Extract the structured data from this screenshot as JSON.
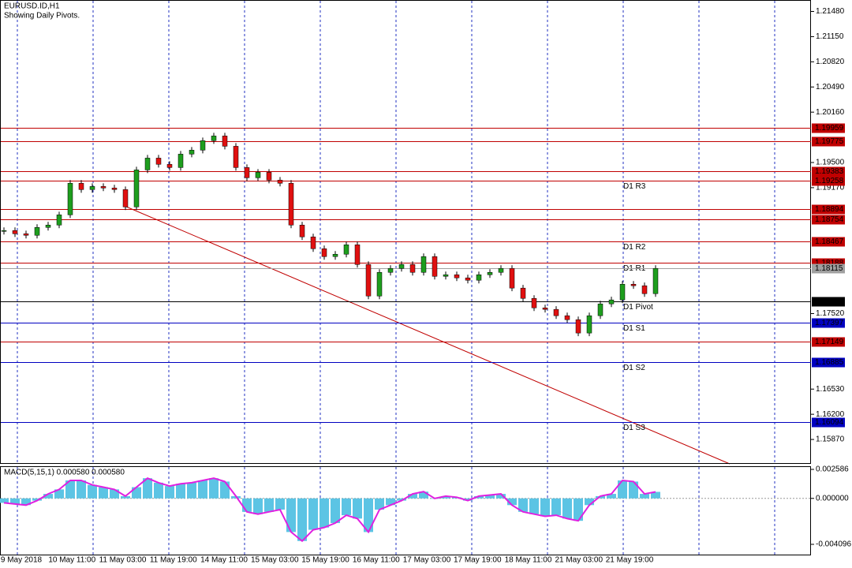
{
  "chart_data": {
    "type": "candlestick",
    "title": "EURUSD.ID,H1",
    "subtitle": "Showing Daily Pivots.",
    "up_color": "#1e9e1e",
    "down_color": "#e01010",
    "close": [
      1.18608,
      1.18566,
      1.18546,
      1.18649,
      1.1868,
      1.18814,
      1.19228,
      1.19145,
      1.19186,
      1.19166,
      1.19145,
      1.18918,
      1.19403,
      1.19558,
      1.19476,
      1.19434,
      1.1961,
      1.19662,
      1.19786,
      1.19848,
      1.19713,
      1.19434,
      1.193,
      1.19372,
      1.19269,
      1.19228,
      1.1868,
      1.18525,
      1.1837,
      1.18267,
      1.18298,
      1.18422,
      1.18163,
      1.1775,
      1.1806,
      1.18112,
      1.18163,
      1.1806,
      1.18267,
      1.18008,
      1.18029,
      1.17988,
      1.17957,
      1.18029,
      1.1806,
      1.18112,
      1.17854,
      1.17719,
      1.17595,
      1.17575,
      1.17492,
      1.1744,
      1.17265,
      1.17492,
      1.17647,
      1.17699,
      1.17905,
      1.17885,
      1.17781,
      1.18112
    ],
    "ylim": [
      1.1555,
      1.2163
    ],
    "yticks": [
      {
        "value": 1.2148,
        "label": "1.21480"
      },
      {
        "value": 1.2115,
        "label": "1.21150"
      },
      {
        "value": 1.2082,
        "label": "1.20820"
      },
      {
        "value": 1.2049,
        "label": "1.20490"
      },
      {
        "value": 1.2016,
        "label": "1.20160"
      },
      {
        "value": 1.195,
        "label": "1.19500"
      },
      {
        "value": 1.1917,
        "label": "1.19170"
      },
      {
        "value": 1.1752,
        "label": "1.17520"
      },
      {
        "value": 1.1653,
        "label": "1.16530"
      },
      {
        "value": 1.162,
        "label": "1.16200"
      },
      {
        "value": 1.1587,
        "label": "1.15870"
      }
    ],
    "levels": [
      {
        "value": 1.19959,
        "color": "#c00000"
      },
      {
        "value": 1.19775,
        "color": "#c00000"
      },
      {
        "value": 1.19383,
        "color": "#c00000"
      },
      {
        "value": 1.19258,
        "color": "#c00000",
        "name": "D1 R3"
      },
      {
        "value": 1.18894,
        "color": "#c00000"
      },
      {
        "value": 1.18754,
        "color": "#c00000"
      },
      {
        "value": 1.18467,
        "color": "#c00000",
        "name": "D1 R2"
      },
      {
        "value": 1.18188,
        "color": "#c00000",
        "name": "D1 R1"
      },
      {
        "value": 1.18115,
        "color": "#a0a0a0"
      },
      {
        "value": 1.17676,
        "color": "#000000",
        "name": "D1 Pivot"
      },
      {
        "value": 1.17397,
        "color": "#0000c0",
        "name": "D1 S1"
      },
      {
        "value": 1.17149,
        "color": "#c00000"
      },
      {
        "value": 1.16885,
        "color": "#0000c0",
        "name": "D1 S2"
      },
      {
        "value": 1.16094,
        "color": "#0000c0",
        "name": "D1 S3"
      }
    ],
    "xlabels": [
      "9 May 2018",
      "10 May 11:00",
      "11 May 03:00",
      "11 May 19:00",
      "14 May 11:00",
      "15 May 03:00",
      "15 May 19:00",
      "16 May 11:00",
      "17 May 03:00",
      "17 May 19:00",
      "18 May 11:00",
      "21 May 03:00",
      "21 May 19:00"
    ],
    "macd": {
      "label": "MACD(5,15,1) 0.000580 0.000580",
      "bar_color": "#5cc4e4",
      "line_color": "#e020e0",
      "ylim": [
        -0.005081,
        0.002867
      ],
      "yticks": [
        0.002586,
        {
          "value": 0,
          "label": "0.000000"
        },
        -0.004096
      ],
      "values": [
        -0.0004,
        -0.0005,
        -0.0006,
        -0.0002,
        0.0004,
        0.0008,
        0.0016,
        0.0016,
        0.0012,
        0.001,
        0.0008,
        0.0002,
        0.001,
        0.0018,
        0.0014,
        0.0011,
        0.0013,
        0.0014,
        0.0016,
        0.0018,
        0.0015,
        0.0002,
        -0.0012,
        -0.0014,
        -0.0012,
        -0.001,
        -0.003,
        -0.0038,
        -0.0028,
        -0.0026,
        -0.0022,
        -0.0015,
        -0.0018,
        -0.003,
        -0.001,
        -0.0006,
        -0.0002,
        0.0004,
        0.0006,
        0.0,
        0.0002,
        0.0001,
        -0.0002,
        0.0002,
        0.0003,
        0.0004,
        -0.0006,
        -0.0012,
        -0.0014,
        -0.0016,
        -0.0015,
        -0.0018,
        -0.002,
        -0.0006,
        0.0002,
        0.0004,
        0.0016,
        0.0015,
        0.0004,
        0.00058
      ]
    }
  }
}
